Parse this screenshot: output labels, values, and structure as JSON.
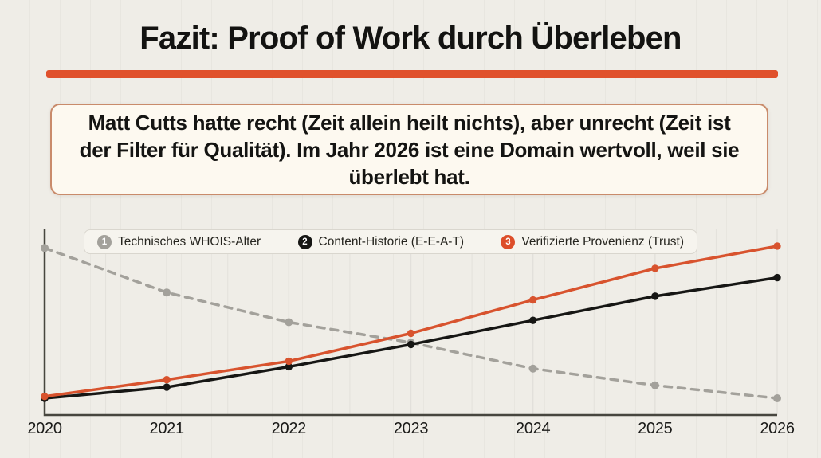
{
  "slide": {
    "title": "Fazit: Proof of Work durch Überleben",
    "callout_text": "Matt Cutts hatte recht (Zeit allein heilt nichts), aber unrecht (Zeit ist der Filter für Qualität). Im Jahr 2026 ist eine Domain wertvoll, weil sie überlebt hat."
  },
  "colors": {
    "background": "#efede7",
    "accent_red": "#e0512c",
    "callout_bg": "#fdf9f0",
    "callout_border": "#c98b6b",
    "axis": "#47463f",
    "gridline": "rgba(0,0,0,0.05)",
    "series_gray": "#a3a19b",
    "series_black": "#161614",
    "series_orange": "#d8532e",
    "badge_gray": "#a3a19b",
    "badge_black": "#161614",
    "badge_orange": "#dd4e2a"
  },
  "chart_data": {
    "type": "line",
    "x": [
      2020,
      2021,
      2022,
      2023,
      2024,
      2025,
      2026
    ],
    "x_tick_labels": [
      "2020",
      "2021",
      "2022",
      "2023",
      "2024",
      "2025",
      "2026"
    ],
    "ylim": [
      0,
      100
    ],
    "y_axis_labels_visible": false,
    "grid": "vertical-half-year",
    "legend_position": "top-inside",
    "series": [
      {
        "name": "Technisches WHOIS-Alter",
        "legend_number": "1",
        "color_key": "series_gray",
        "badge_key": "badge_gray",
        "line_style": "dashed",
        "values": [
          90,
          66,
          50,
          39,
          25,
          16,
          9
        ]
      },
      {
        "name": "Content-Historie (E-E-A-T)",
        "legend_number": "2",
        "color_key": "series_black",
        "badge_key": "badge_black",
        "line_style": "solid",
        "values": [
          9,
          15,
          26,
          38,
          51,
          64,
          74
        ]
      },
      {
        "name": "Verifizierte Provenienz (Trust)",
        "legend_number": "3",
        "color_key": "series_orange",
        "badge_key": "badge_orange",
        "line_style": "solid",
        "values": [
          10,
          19,
          29,
          44,
          62,
          79,
          91
        ]
      }
    ]
  }
}
